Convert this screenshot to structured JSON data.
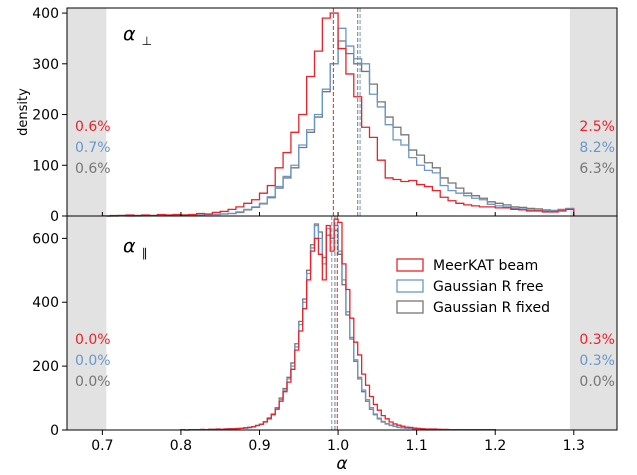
{
  "chart_data": {
    "type": "histogram",
    "xlabel": "α",
    "shared_x": true,
    "xlim": [
      0.655,
      1.355
    ],
    "xticks": [
      0.7,
      0.8,
      0.9,
      1.0,
      1.1,
      1.2,
      1.3
    ],
    "xtick_labels": [
      "0.7",
      "0.8",
      "0.9",
      "1.0",
      "1.1",
      "1.2",
      "1.3"
    ],
    "excluded_regions": [
      [
        0.655,
        0.705
      ],
      [
        1.295,
        1.355
      ]
    ],
    "legend": {
      "placement": "right-middle of lower panel",
      "entries": [
        "MeerKAT beam",
        "Gaussian R free",
        "Gaussian R fixed"
      ]
    },
    "series_colors": [
      "#e8232a",
      "#6a97c9",
      "#767676"
    ],
    "bin_width": 0.01,
    "panels": [
      {
        "name": "alpha-perp",
        "label": "α",
        "label_sub": "⊥",
        "ylabel": "density",
        "ylim": [
          0,
          410
        ],
        "yticks": [
          0,
          100,
          200,
          300,
          400
        ],
        "ytick_labels": [
          "0",
          "100",
          "200",
          "300",
          "400"
        ],
        "x_edges": [
          0.7,
          0.71,
          0.72,
          0.73,
          0.74,
          0.75,
          0.76,
          0.77,
          0.78,
          0.79,
          0.8,
          0.81,
          0.82,
          0.83,
          0.84,
          0.85,
          0.86,
          0.87,
          0.88,
          0.89,
          0.9,
          0.91,
          0.92,
          0.93,
          0.94,
          0.95,
          0.96,
          0.97,
          0.98,
          0.99,
          1.0,
          1.01,
          1.02,
          1.03,
          1.04,
          1.05,
          1.06,
          1.07,
          1.08,
          1.09,
          1.1,
          1.11,
          1.12,
          1.13,
          1.14,
          1.15,
          1.16,
          1.17,
          1.18,
          1.19,
          1.2,
          1.21,
          1.22,
          1.23,
          1.24,
          1.25,
          1.26,
          1.27,
          1.28,
          1.29,
          1.3
        ],
        "series": [
          {
            "name": "MeerKAT beam",
            "values": [
              0,
              1,
              1,
              2,
              1,
              2,
              1,
              3,
              2,
              3,
              2,
              3,
              5,
              4,
              7,
              9,
              13,
              18,
              25,
              32,
              45,
              60,
              95,
              125,
              165,
              200,
              275,
              325,
              390,
              400,
              330,
              280,
              235,
              175,
              155,
              110,
              75,
              72,
              68,
              70,
              62,
              58,
              50,
              37,
              30,
              25,
              22,
              20,
              18,
              18,
              16,
              16,
              13,
              12,
              10,
              10,
              8,
              8,
              10,
              13
            ]
          },
          {
            "name": "Gaussian R free",
            "values": [
              0,
              0,
              1,
              1,
              0,
              1,
              1,
              1,
              2,
              1,
              2,
              2,
              2,
              3,
              3,
              4,
              5,
              8,
              13,
              18,
              25,
              38,
              58,
              78,
              100,
              140,
              170,
              200,
              250,
              300,
              370,
              335,
              310,
              300,
              240,
              215,
              180,
              150,
              140,
              115,
              100,
              90,
              85,
              60,
              50,
              45,
              40,
              35,
              32,
              23,
              20,
              18,
              15,
              14,
              12,
              11,
              10,
              10,
              12,
              15
            ]
          },
          {
            "name": "Gaussian R fixed",
            "values": [
              0,
              0,
              1,
              0,
              1,
              1,
              1,
              1,
              1,
              2,
              2,
              2,
              2,
              3,
              3,
              4,
              5,
              7,
              12,
              17,
              24,
              36,
              55,
              75,
              95,
              135,
              165,
              195,
              245,
              300,
              345,
              320,
              300,
              285,
              260,
              225,
              195,
              175,
              160,
              130,
              120,
              105,
              95,
              75,
              65,
              55,
              45,
              40,
              35,
              28,
              25,
              22,
              18,
              17,
              15,
              14,
              12,
              11,
              13,
              14
            ]
          }
        ],
        "medians": [
          0.994,
          1.028,
          1.025
        ],
        "annotations_left": [
          "0.6%",
          "0.7%",
          "0.6%"
        ],
        "annotations_right": [
          "2.5%",
          "8.2%",
          "6.3%"
        ]
      },
      {
        "name": "alpha-parallel",
        "label": "α",
        "label_sub": "∥",
        "ylabel": "",
        "ylim": [
          0,
          670
        ],
        "yticks": [
          0,
          200,
          400,
          600
        ],
        "ytick_labels": [
          "0",
          "200",
          "400",
          "600"
        ],
        "x_edges": [
          0.8,
          0.805,
          0.81,
          0.815,
          0.82,
          0.825,
          0.83,
          0.835,
          0.84,
          0.845,
          0.85,
          0.855,
          0.86,
          0.865,
          0.87,
          0.875,
          0.88,
          0.885,
          0.89,
          0.895,
          0.9,
          0.905,
          0.91,
          0.915,
          0.92,
          0.925,
          0.93,
          0.935,
          0.94,
          0.945,
          0.95,
          0.955,
          0.96,
          0.965,
          0.97,
          0.975,
          0.98,
          0.985,
          0.99,
          0.995,
          1.0,
          1.005,
          1.01,
          1.015,
          1.02,
          1.025,
          1.03,
          1.035,
          1.04,
          1.045,
          1.05,
          1.055,
          1.06,
          1.065,
          1.07,
          1.075,
          1.08,
          1.085,
          1.09,
          1.095,
          1.1,
          1.105,
          1.11,
          1.115,
          1.12,
          1.125,
          1.13,
          1.135,
          1.14,
          1.145,
          1.15,
          1.155,
          1.16,
          1.165,
          1.17,
          1.175,
          1.18,
          1.185,
          1.19,
          1.195,
          1.2
        ],
        "series": [
          {
            "name": "MeerKAT beam",
            "values": [
              1,
              0,
              1,
              1,
              1,
              2,
              1,
              2,
              2,
              3,
              2,
              3,
              4,
              4,
              5,
              5,
              7,
              8,
              10,
              14,
              18,
              25,
              35,
              48,
              65,
              90,
              120,
              150,
              190,
              250,
              310,
              380,
              470,
              560,
              600,
              550,
              470,
              640,
              560,
              660,
              650,
              520,
              440,
              350,
              275,
              235,
              175,
              140,
              105,
              80,
              62,
              45,
              35,
              25,
              19,
              15,
              12,
              9,
              8,
              6,
              5,
              4,
              3,
              3,
              3,
              2,
              2,
              2,
              1,
              1,
              1,
              1,
              1,
              1,
              1,
              1,
              1,
              1,
              1,
              1
            ]
          },
          {
            "name": "Gaussian R free",
            "values": [
              1,
              0,
              1,
              1,
              1,
              1,
              1,
              2,
              2,
              2,
              2,
              3,
              3,
              4,
              4,
              5,
              6,
              8,
              10,
              14,
              18,
              26,
              38,
              50,
              68,
              95,
              125,
              160,
              200,
              260,
              330,
              400,
              490,
              570,
              640,
              600,
              520,
              630,
              600,
              640,
              560,
              470,
              370,
              290,
              220,
              165,
              125,
              95,
              70,
              50,
              37,
              27,
              20,
              15,
              12,
              9,
              7,
              6,
              5,
              4,
              3,
              3,
              2,
              2,
              2,
              2,
              1,
              1,
              1,
              1,
              1,
              1,
              1,
              1,
              1,
              1,
              1,
              1,
              1,
              1
            ]
          },
          {
            "name": "Gaussian R fixed",
            "values": [
              1,
              0,
              1,
              1,
              1,
              1,
              1,
              2,
              2,
              2,
              2,
              3,
              3,
              4,
              4,
              5,
              6,
              8,
              10,
              14,
              18,
              26,
              38,
              50,
              70,
              100,
              130,
              165,
              210,
              270,
              340,
              410,
              500,
              580,
              645,
              620,
              540,
              610,
              600,
              625,
              550,
              455,
              360,
              285,
              215,
              160,
              120,
              90,
              65,
              48,
              35,
              25,
              19,
              14,
              11,
              8,
              7,
              6,
              5,
              4,
              3,
              3,
              2,
              2,
              2,
              2,
              1,
              1,
              1,
              1,
              1,
              1,
              1,
              1,
              1,
              1,
              1,
              1,
              1,
              1
            ]
          }
        ],
        "medians": [
          0.999,
          0.992,
          0.996
        ],
        "annotations_left": [
          "0.0%",
          "0.0%",
          "0.0%"
        ],
        "annotations_right": [
          "0.3%",
          "0.3%",
          "0.0%"
        ]
      }
    ]
  }
}
